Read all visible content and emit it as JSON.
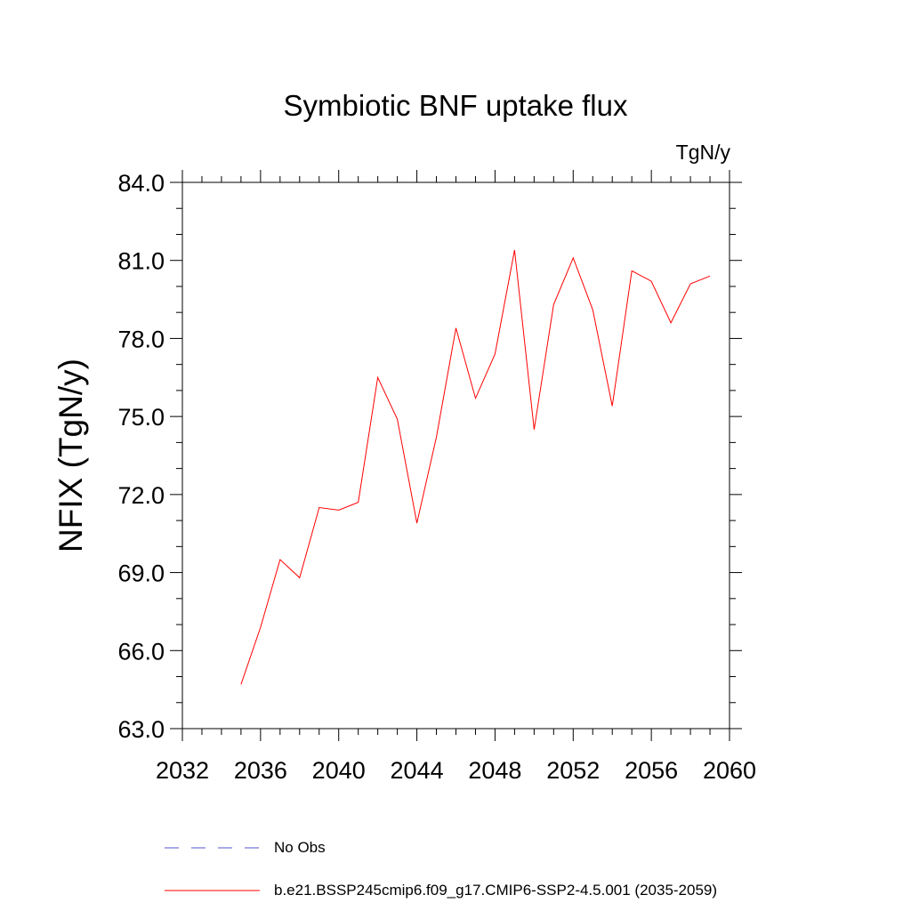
{
  "chart_data": {
    "type": "line",
    "title": "Symbiotic BNF uptake flux",
    "units": "TgN/y",
    "ylabel": "NFIX  (TgN/y)",
    "xlabel": "",
    "xlim": [
      2032,
      2060
    ],
    "ylim": [
      63.0,
      84.0
    ],
    "x_ticks": [
      2032,
      2036,
      2040,
      2044,
      2048,
      2052,
      2056,
      2060
    ],
    "y_ticks": [
      "63.0",
      "66.0",
      "69.0",
      "72.0",
      "75.0",
      "78.0",
      "81.0",
      "84.0"
    ],
    "series": [
      {
        "name": "b.e21.BSSP245cmip6.f09_g17.CMIP6-SSP2-4.5.001 (2035-2059)",
        "color": "#ff0000",
        "x": [
          2035,
          2036,
          2037,
          2038,
          2039,
          2040,
          2041,
          2042,
          2043,
          2044,
          2045,
          2046,
          2047,
          2048,
          2049,
          2050,
          2051,
          2052,
          2053,
          2054,
          2055,
          2056,
          2057,
          2058,
          2059
        ],
        "y": [
          64.7,
          66.9,
          69.5,
          68.8,
          71.5,
          71.4,
          71.7,
          76.5,
          74.9,
          70.9,
          74.2,
          78.4,
          75.7,
          77.4,
          81.4,
          74.5,
          79.3,
          81.1,
          79.1,
          75.4,
          80.6,
          80.2,
          78.6,
          80.1,
          80.4
        ]
      }
    ],
    "legend": [
      {
        "label": "No Obs",
        "style": "dashed",
        "color": "#5555cc"
      },
      {
        "label": "b.e21.BSSP245cmip6.f09_g17.CMIP6-SSP2-4.5.001 (2035-2059)",
        "style": "solid",
        "color": "#ff0000"
      }
    ],
    "legend_position": "bottom",
    "grid": false
  }
}
